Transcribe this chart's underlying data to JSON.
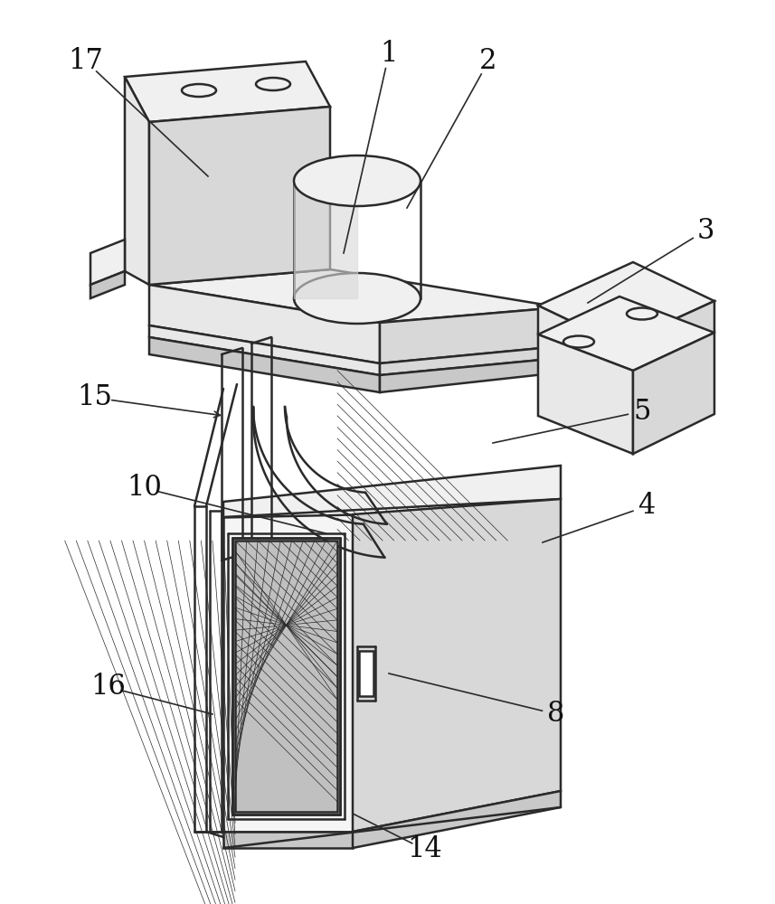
{
  "bg_color": "#ffffff",
  "lc": "#2a2a2a",
  "lw": 1.8,
  "lw_thin": 0.8,
  "face_top": "#f0f0f0",
  "face_front": "#e8e8e8",
  "face_right": "#d8d8d8",
  "face_dark": "#c8c8c8",
  "face_grill": "#c0c0c0",
  "label_fs": 22,
  "labels": [
    [
      "17",
      95,
      68,
      230,
      195
    ],
    [
      "1",
      430,
      60,
      380,
      280
    ],
    [
      "2",
      540,
      68,
      450,
      230
    ],
    [
      "3",
      780,
      255,
      650,
      335
    ],
    [
      "5",
      710,
      455,
      545,
      490
    ],
    [
      "4",
      715,
      560,
      600,
      600
    ],
    [
      "10",
      160,
      540,
      360,
      590
    ],
    [
      "15",
      105,
      440,
      248,
      460
    ],
    [
      "16",
      120,
      760,
      235,
      790
    ],
    [
      "8",
      615,
      790,
      430,
      745
    ],
    [
      "14",
      470,
      940,
      390,
      900
    ]
  ]
}
